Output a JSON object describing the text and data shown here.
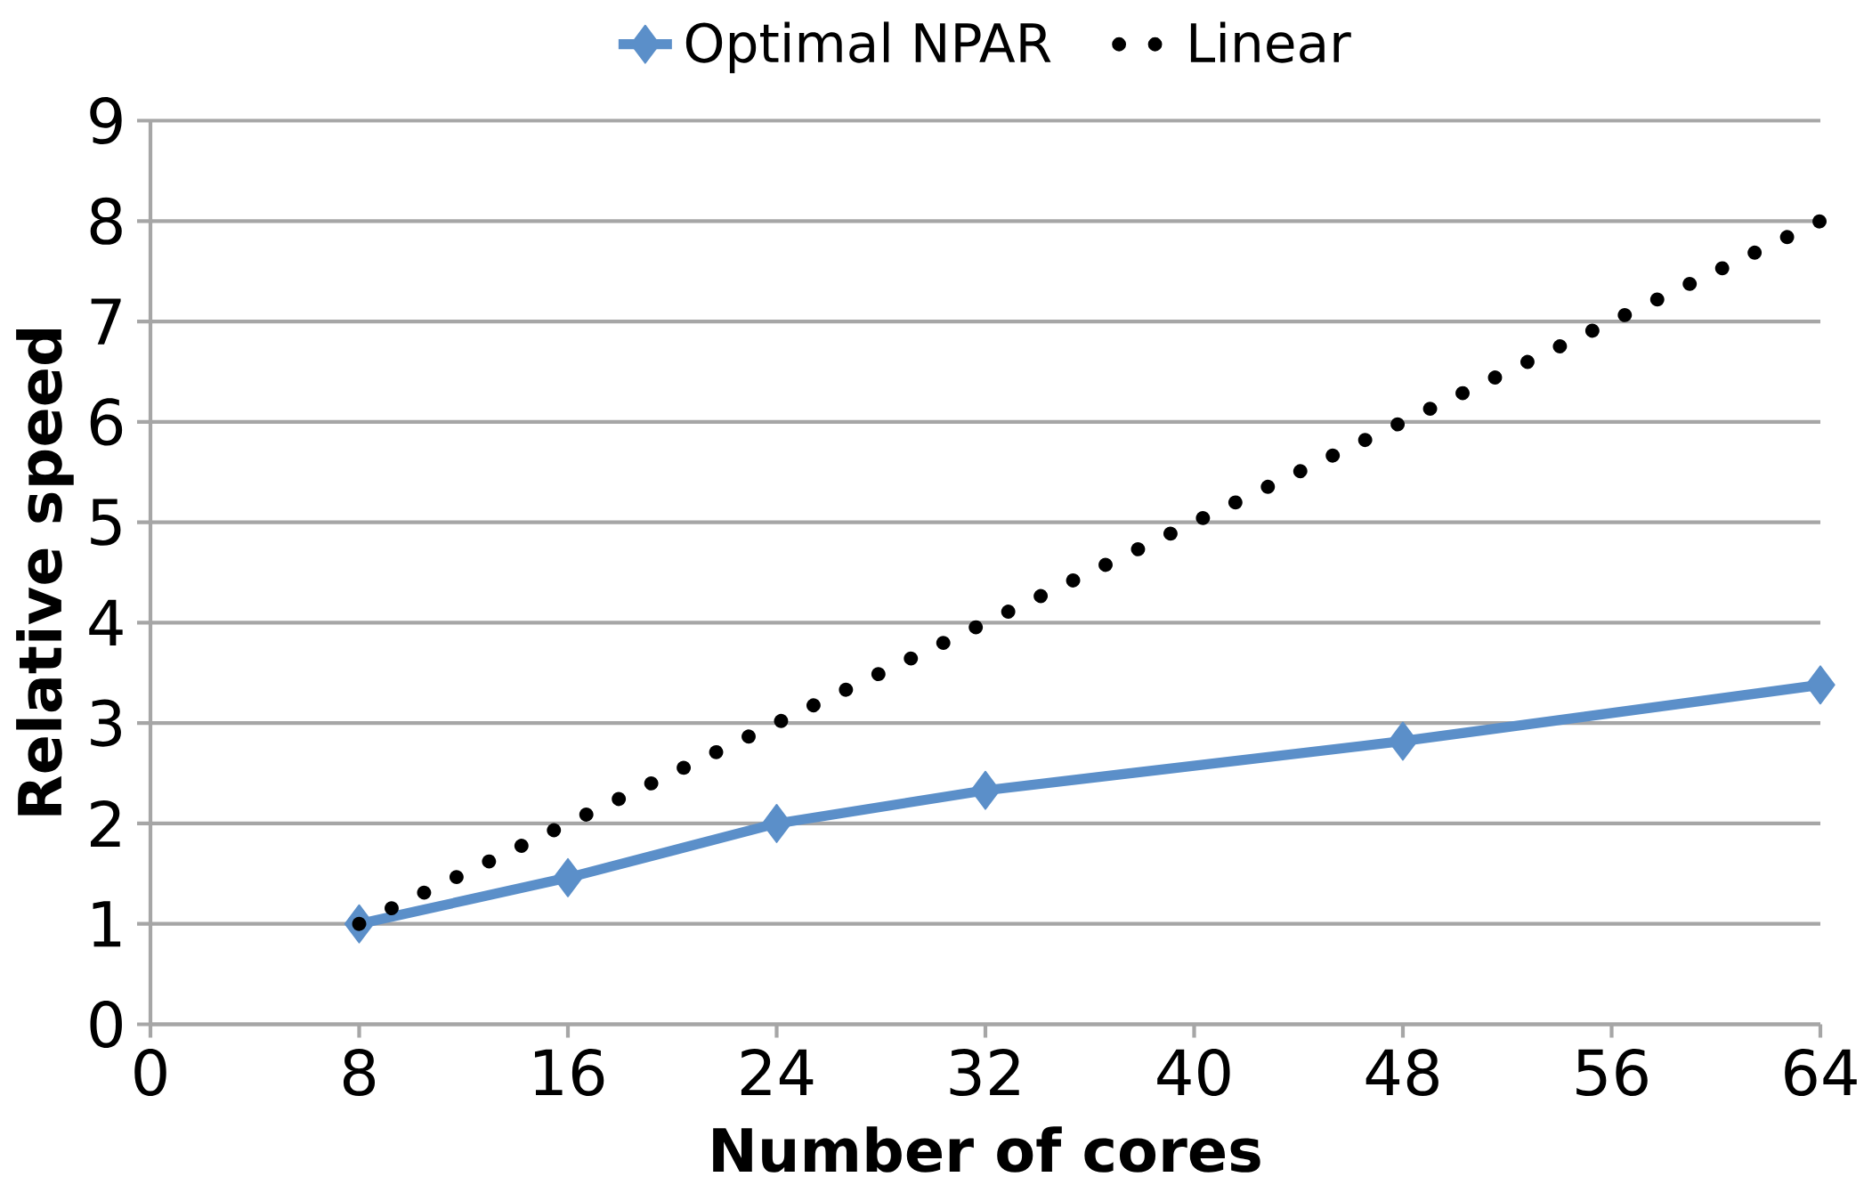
{
  "chart_data": {
    "type": "line",
    "xlabel": "Number of cores",
    "ylabel": "Relative speed",
    "series": [
      {
        "name": "Optimal NPAR",
        "color": "#5b8fc9",
        "x": [
          8,
          16,
          24,
          32,
          48,
          64
        ],
        "values": [
          1.0,
          1.46,
          2.0,
          2.33,
          2.82,
          3.38
        ],
        "marker": "diamond",
        "line_style": "solid"
      },
      {
        "name": "Linear",
        "color": "#000000",
        "x": [
          8,
          64
        ],
        "values": [
          1,
          8
        ],
        "marker": "none",
        "line_style": "dotted"
      }
    ],
    "xlim": [
      0,
      64
    ],
    "xticks": [
      0,
      8,
      16,
      24,
      32,
      40,
      48,
      56,
      64
    ],
    "ylim": [
      0,
      9
    ],
    "yticks": [
      0,
      1,
      2,
      3,
      4,
      5,
      6,
      7,
      8,
      9
    ],
    "grid": "y",
    "legend": "top"
  }
}
